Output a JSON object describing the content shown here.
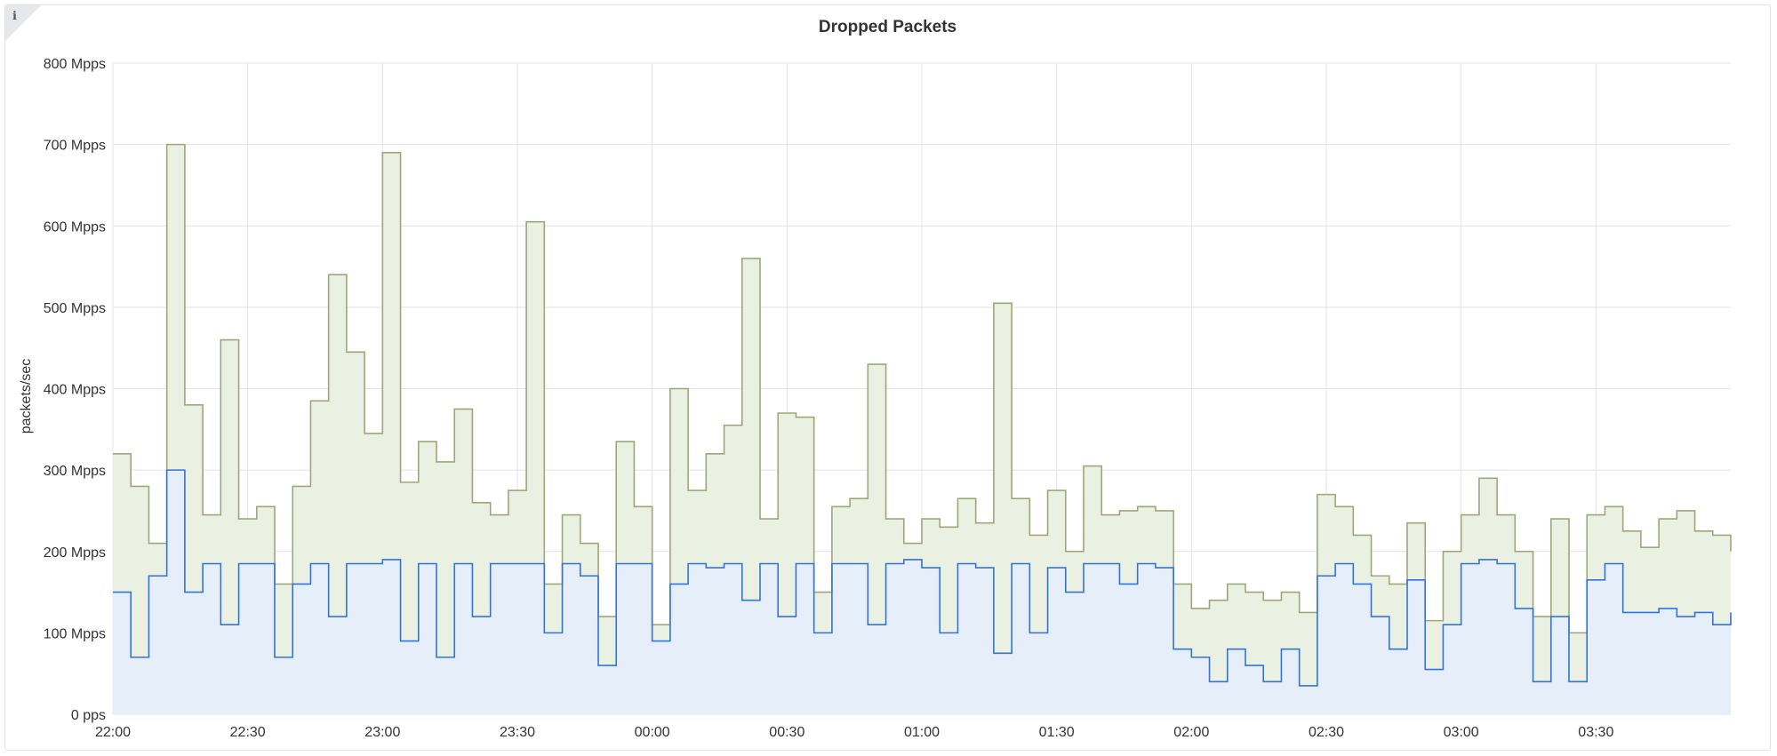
{
  "panel": {
    "title": "Dropped Packets",
    "info_icon": "info-icon",
    "info_glyph": "ℹ"
  },
  "chart_data": {
    "type": "area",
    "stacked": true,
    "title": "Dropped Packets",
    "xlabel": "",
    "ylabel": "packets/sec",
    "ylim": [
      0,
      800
    ],
    "y_unit": "Mpps",
    "grid": true,
    "legend": "none",
    "y_ticks": [
      "0 pps",
      "100 Mpps",
      "200 Mpps",
      "300 Mpps",
      "400 Mpps",
      "500 Mpps",
      "600 Mpps",
      "700 Mpps",
      "800 Mpps"
    ],
    "x_ticks": [
      "22:00",
      "22:30",
      "23:00",
      "23:30",
      "00:00",
      "00:30",
      "01:00",
      "01:30",
      "02:00",
      "02:30",
      "03:00",
      "03:30"
    ],
    "x_tick_minutes": [
      0,
      30,
      60,
      90,
      120,
      150,
      180,
      210,
      240,
      270,
      300,
      330
    ],
    "x_range_minutes": [
      0,
      360
    ],
    "colors": {
      "series_a": "#3274d9",
      "series_b": "#a0a67a"
    },
    "series": [
      {
        "key": "a",
        "minutes": [
          0,
          4,
          8,
          12,
          16,
          20,
          24,
          28,
          32,
          36,
          40,
          44,
          48,
          52,
          56,
          60,
          64,
          68,
          72,
          76,
          80,
          84,
          88,
          92,
          96,
          100,
          104,
          108,
          112,
          116,
          120,
          124,
          128,
          132,
          136,
          140,
          144,
          148,
          152,
          156,
          160,
          164,
          168,
          172,
          176,
          180,
          184,
          188,
          192,
          196,
          200,
          204,
          208,
          212,
          216,
          220,
          224,
          228,
          232,
          236,
          240,
          244,
          248,
          252,
          256,
          260,
          264,
          268,
          272,
          276,
          280,
          284,
          288,
          292,
          296,
          300,
          304,
          308,
          312,
          316,
          320,
          324,
          328,
          332,
          336,
          340,
          344,
          348,
          352,
          356,
          360
        ],
        "values": [
          150,
          70,
          170,
          300,
          150,
          185,
          110,
          185,
          185,
          70,
          160,
          185,
          120,
          185,
          185,
          190,
          90,
          185,
          70,
          185,
          120,
          185,
          185,
          185,
          100,
          185,
          170,
          60,
          185,
          185,
          90,
          160,
          185,
          180,
          185,
          140,
          185,
          120,
          185,
          100,
          185,
          185,
          110,
          185,
          190,
          180,
          100,
          185,
          180,
          75,
          185,
          100,
          180,
          150,
          185,
          185,
          160,
          185,
          180,
          80,
          70,
          40,
          80,
          60,
          40,
          80,
          35,
          170,
          185,
          160,
          120,
          80,
          165,
          55,
          110,
          185,
          190,
          185,
          130,
          40,
          120,
          40,
          165,
          185,
          125,
          125,
          130,
          120,
          125,
          110,
          125
        ]
      },
      {
        "key": "b",
        "minutes": [
          0,
          4,
          8,
          12,
          16,
          20,
          24,
          28,
          32,
          36,
          40,
          44,
          48,
          52,
          56,
          60,
          64,
          68,
          72,
          76,
          80,
          84,
          88,
          92,
          96,
          100,
          104,
          108,
          112,
          116,
          120,
          124,
          128,
          132,
          136,
          140,
          144,
          148,
          152,
          156,
          160,
          164,
          168,
          172,
          176,
          180,
          184,
          188,
          192,
          196,
          200,
          204,
          208,
          212,
          216,
          220,
          224,
          228,
          232,
          236,
          240,
          244,
          248,
          252,
          256,
          260,
          264,
          268,
          272,
          276,
          280,
          284,
          288,
          292,
          296,
          300,
          304,
          308,
          312,
          316,
          320,
          324,
          328,
          332,
          336,
          340,
          344,
          348,
          352,
          356,
          360
        ],
        "values": [
          170,
          210,
          40,
          400,
          230,
          60,
          350,
          55,
          70,
          90,
          120,
          200,
          420,
          260,
          160,
          500,
          195,
          150,
          240,
          190,
          140,
          60,
          90,
          420,
          60,
          60,
          40,
          60,
          150,
          70,
          20,
          240,
          90,
          140,
          170,
          420,
          55,
          250,
          180,
          50,
          70,
          80,
          320,
          55,
          20,
          60,
          130,
          80,
          55,
          430,
          80,
          120,
          95,
          50,
          120,
          60,
          90,
          70,
          70,
          80,
          60,
          100,
          80,
          90,
          100,
          70,
          90,
          100,
          70,
          60,
          50,
          80,
          70,
          60,
          90,
          60,
          100,
          60,
          70,
          80,
          120,
          60,
          80,
          70,
          100,
          80,
          110,
          130,
          100,
          110,
          75
        ]
      }
    ]
  }
}
